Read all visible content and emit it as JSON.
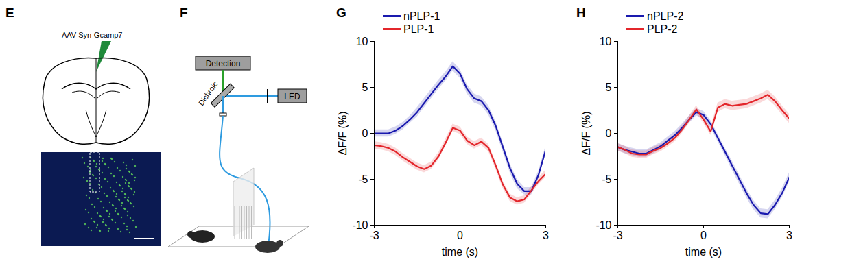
{
  "panels": {
    "E": {
      "label": "E",
      "injection": "AAV-Syn-Gcamp7"
    },
    "F": {
      "label": "F",
      "detection": "Detection",
      "dichroic": "Dichroic",
      "led": "LED"
    }
  },
  "chart_data": [
    {
      "type": "line",
      "title": "G",
      "x_label": "time (s)",
      "y_label": "ΔF/F (%)",
      "x": [
        -3,
        -2.75,
        -2.5,
        -2.25,
        -2,
        -1.75,
        -1.5,
        -1.25,
        -1,
        -0.75,
        -0.5,
        -0.25,
        0,
        0.25,
        0.5,
        0.75,
        1,
        1.25,
        1.5,
        1.75,
        2,
        2.25,
        2.5,
        2.75,
        3
      ],
      "xlim": [
        -3,
        3
      ],
      "xticks": [
        -3,
        0,
        3
      ],
      "ylim": [
        -10,
        10
      ],
      "yticks": [
        -10,
        -5,
        0,
        5,
        10
      ],
      "legend": "top-left",
      "series": [
        {
          "name": "nPLP-1",
          "color": "#1a1aae",
          "values": [
            0,
            0,
            0,
            0.3,
            0.8,
            1.5,
            2.3,
            3.3,
            4.3,
            5.3,
            6.2,
            7.3,
            6.5,
            4.8,
            3.8,
            3.5,
            2.5,
            0.8,
            -1.5,
            -3.8,
            -5.5,
            -6.3,
            -6.3,
            -4.5,
            -1.8
          ],
          "errors": [
            0.4,
            0.4,
            0.4,
            0.4,
            0.4,
            0.4,
            0.5,
            0.5,
            0.5,
            0.5,
            0.5,
            0.5,
            0.5,
            0.5,
            0.5,
            0.5,
            0.5,
            0.5,
            0.5,
            0.5,
            0.5,
            0.4,
            0.4,
            0.4,
            0.4
          ]
        },
        {
          "name": "PLP-1",
          "color": "#e3262b",
          "values": [
            -1.3,
            -1.4,
            -1.6,
            -2,
            -2.6,
            -3.1,
            -3.6,
            -3.9,
            -3.5,
            -2.5,
            -1,
            0.6,
            0.3,
            -0.8,
            -1.3,
            -0.9,
            -1.6,
            -3.5,
            -5.6,
            -7,
            -7.4,
            -7.2,
            -6.2,
            -5.2,
            -4.4
          ],
          "errors": [
            0.4,
            0.4,
            0.4,
            0.4,
            0.4,
            0.4,
            0.4,
            0.4,
            0.4,
            0.4,
            0.4,
            0.4,
            0.4,
            0.4,
            0.4,
            0.4,
            0.4,
            0.4,
            0.4,
            0.4,
            0.4,
            0.4,
            0.4,
            0.4,
            0.4
          ]
        }
      ]
    },
    {
      "type": "line",
      "title": "H",
      "x_label": "time (s)",
      "y_label": "ΔF/F (%)",
      "x": [
        -3,
        -2.75,
        -2.5,
        -2.25,
        -2,
        -1.75,
        -1.5,
        -1.25,
        -1,
        -0.75,
        -0.5,
        -0.25,
        0,
        0.25,
        0.5,
        0.75,
        1,
        1.25,
        1.5,
        1.75,
        2,
        2.25,
        2.5,
        2.75,
        3
      ],
      "xlim": [
        -3,
        3
      ],
      "xticks": [
        -3,
        0,
        3
      ],
      "ylim": [
        -10,
        10
      ],
      "yticks": [
        -10,
        -5,
        0,
        5,
        10
      ],
      "legend": "top-left",
      "series": [
        {
          "name": "nPLP-2",
          "color": "#1a1aae",
          "values": [
            -1.5,
            -1.8,
            -2,
            -2.2,
            -2.2,
            -1.8,
            -1.4,
            -0.8,
            -0.2,
            0.6,
            1.5,
            2.3,
            2.0,
            1.0,
            -0.5,
            -2,
            -3.5,
            -5,
            -6.5,
            -7.8,
            -8.7,
            -8.8,
            -7.8,
            -6.5,
            -4.8
          ],
          "errors": [
            0.4,
            0.4,
            0.4,
            0.4,
            0.4,
            0.4,
            0.4,
            0.4,
            0.4,
            0.4,
            0.4,
            0.4,
            0.4,
            0.4,
            0.4,
            0.4,
            0.5,
            0.5,
            0.5,
            0.5,
            0.5,
            0.5,
            0.5,
            0.5,
            0.5
          ]
        },
        {
          "name": "PLP-2",
          "color": "#e3262b",
          "values": [
            -1.5,
            -1.8,
            -2.2,
            -2.3,
            -2.3,
            -1.9,
            -1.6,
            -1.1,
            -0.5,
            0.4,
            1.5,
            2.6,
            1.5,
            0.2,
            2.8,
            3.2,
            3.0,
            3.1,
            3.2,
            3.5,
            3.8,
            4.2,
            3.5,
            2.5,
            1.6
          ],
          "errors": [
            0.4,
            0.4,
            0.4,
            0.4,
            0.4,
            0.4,
            0.4,
            0.4,
            0.4,
            0.4,
            0.4,
            0.4,
            0.4,
            0.4,
            0.5,
            0.5,
            0.5,
            0.5,
            0.5,
            0.5,
            0.5,
            0.5,
            0.5,
            0.5,
            0.5
          ]
        }
      ]
    }
  ]
}
